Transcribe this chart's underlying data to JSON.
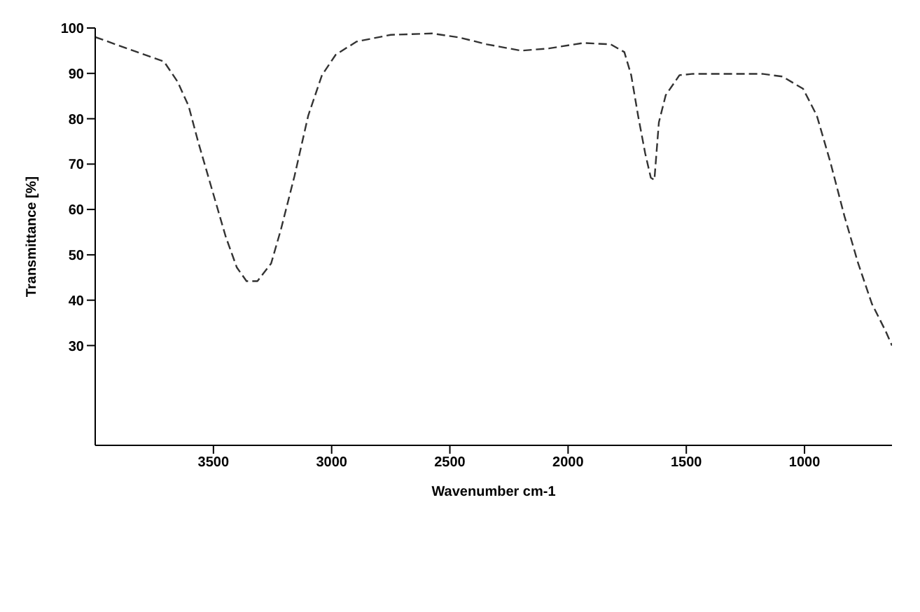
{
  "chart_data": {
    "type": "line",
    "xlabel": "Wavenumber cm-1",
    "ylabel": "Transmittance [%]",
    "x": [
      4000,
      3709,
      3651,
      3605,
      3564,
      3506,
      3448,
      3401,
      3360,
      3314,
      3256,
      3215,
      3157,
      3099,
      3041,
      2983,
      2895,
      2750,
      2576,
      2459,
      2343,
      2198,
      2081,
      1936,
      1820,
      1762,
      1733,
      1704,
      1674,
      1650,
      1635,
      1616,
      1587,
      1529,
      1471,
      1180,
      1093,
      1006,
      948,
      890,
      831,
      773,
      715,
      657,
      630
    ],
    "series": [
      {
        "color": "#333333",
        "values": [
          98,
          92.6,
          88.1,
          82.8,
          74.8,
          64.4,
          54,
          47.2,
          44.2,
          44.2,
          48.1,
          55.5,
          67.4,
          80.7,
          89.6,
          94.1,
          97,
          98.5,
          98.8,
          97.9,
          96.4,
          95,
          95.5,
          96.7,
          96.4,
          94.7,
          89.6,
          80.7,
          72.4,
          67,
          66.5,
          79.2,
          85.2,
          89.6,
          89.9,
          89.9,
          89.3,
          86.6,
          80.7,
          70.3,
          58.5,
          48.1,
          39.2,
          33.2,
          30
        ]
      }
    ],
    "xlim": [
      4000,
      630
    ],
    "xticks": [
      3500,
      3000,
      2500,
      2000,
      1500,
      1000
    ],
    "ylim": [
      8,
      100
    ],
    "yticks": [
      100,
      90,
      80,
      70,
      60,
      50,
      40,
      30
    ],
    "grid": false,
    "legend": false,
    "marker": "none",
    "line_style": "dashed"
  }
}
